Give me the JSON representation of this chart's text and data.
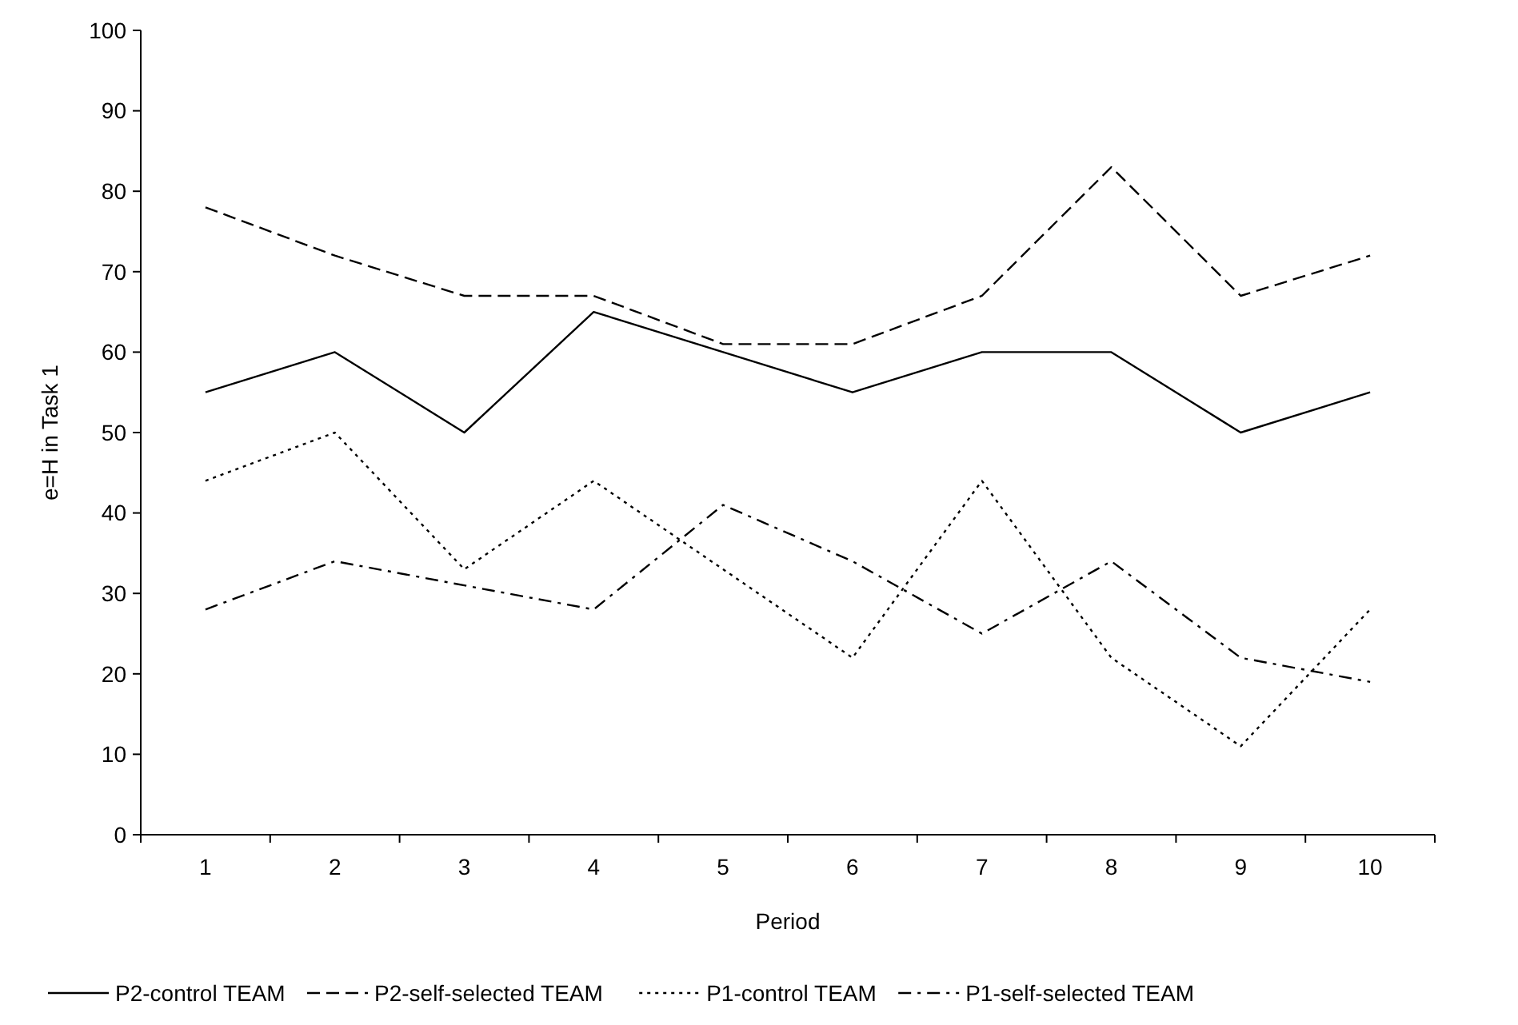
{
  "chart_data": {
    "type": "line",
    "xlabel": "Period",
    "ylabel": "e=H in Task 1",
    "categories": [
      "1",
      "2",
      "3",
      "4",
      "5",
      "6",
      "7",
      "8",
      "9",
      "10"
    ],
    "ylim": [
      0,
      100
    ],
    "yticks": [
      0,
      10,
      20,
      30,
      40,
      50,
      60,
      70,
      80,
      90,
      100
    ],
    "grid": false,
    "legend": "bottom",
    "marker": "none",
    "series": [
      {
        "name": "P2-control TEAM",
        "color": "#000000",
        "line_style": "solid",
        "values": [
          55,
          60,
          50,
          65,
          60,
          55,
          60,
          60,
          50,
          55
        ]
      },
      {
        "name": "P2-self-selected TEAM",
        "color": "#000000",
        "line_style": "dashed",
        "values": [
          78,
          72,
          67,
          67,
          61,
          61,
          67,
          83,
          67,
          72
        ]
      },
      {
        "name": "P1-control TEAM",
        "color": "#000000",
        "line_style": "dotted",
        "values": [
          44,
          50,
          33,
          44,
          33,
          22,
          44,
          22,
          11,
          28
        ]
      },
      {
        "name": "P1-self-selected TEAM",
        "color": "#000000",
        "line_style": "dashdot",
        "values": [
          28,
          34,
          31,
          28,
          41,
          34,
          25,
          34,
          22,
          19
        ]
      }
    ]
  }
}
